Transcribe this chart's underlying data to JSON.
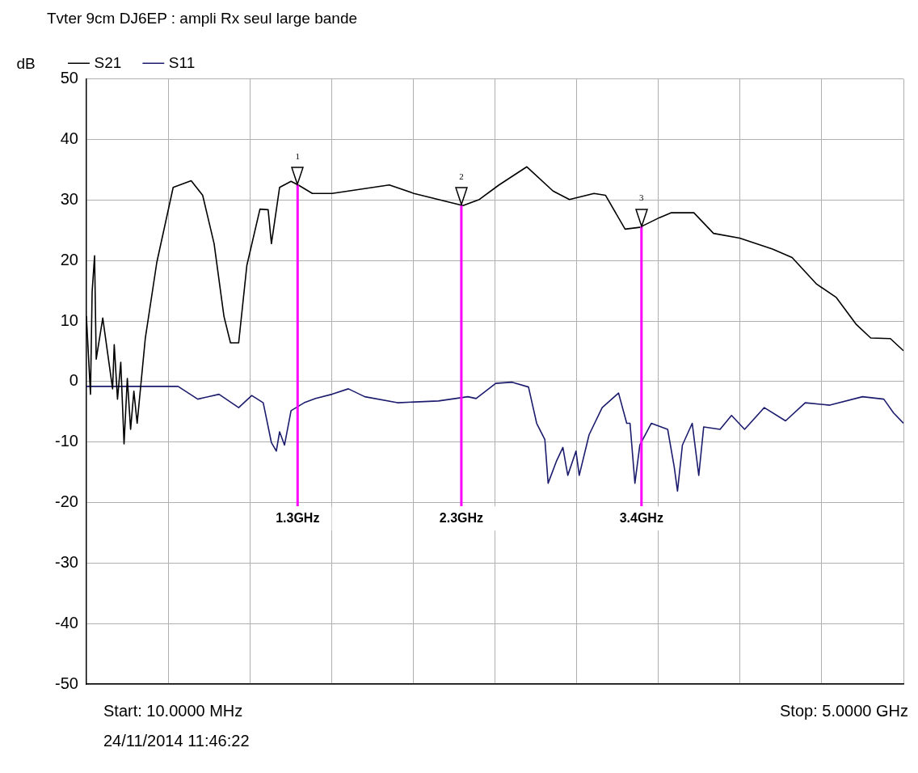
{
  "chart_data": {
    "type": "line",
    "title": "Tvter 9cm DJ6EP : ampli Rx seul large bande",
    "ylabel": "dB",
    "xlim": [
      0.01,
      5.0
    ],
    "xticks": [
      {
        "value": 0.01,
        "label": null
      },
      {
        "value": 0.509,
        "label": null
      },
      {
        "value": 1.008,
        "label": null
      },
      {
        "value": 1.507,
        "label": null
      },
      {
        "value": 2.006,
        "label": null
      },
      {
        "value": 2.505,
        "label": null
      },
      {
        "value": 3.004,
        "label": null
      },
      {
        "value": 3.503,
        "label": null
      },
      {
        "value": 4.002,
        "label": null
      },
      {
        "value": 4.501,
        "label": null
      },
      {
        "value": 5.0,
        "label": null
      }
    ],
    "ylim": [
      -50,
      50
    ],
    "yticks": [
      -50,
      -40,
      -30,
      -20,
      -10,
      0,
      10,
      20,
      30,
      40,
      50
    ],
    "grid": true,
    "legend": "top left",
    "marker": "none",
    "line_style": "solid",
    "tick_labels": "y",
    "series": [
      {
        "name": "S21",
        "color": "#000000",
        "x": [
          0.01,
          0.035,
          0.045,
          0.06,
          0.07,
          0.11,
          0.17,
          0.18,
          0.2,
          0.22,
          0.24,
          0.26,
          0.28,
          0.3,
          0.32,
          0.37,
          0.44,
          0.54,
          0.65,
          0.72,
          0.79,
          0.85,
          0.89,
          0.94,
          0.99,
          1.07,
          1.12,
          1.14,
          1.19,
          1.26,
          1.31,
          1.39,
          1.51,
          1.76,
          1.86,
          2.01,
          2.16,
          2.31,
          2.41,
          2.53,
          2.7,
          2.86,
          2.96,
          3.11,
          3.18,
          3.3,
          3.39,
          3.51,
          3.58,
          3.72,
          3.84,
          4.0,
          4.2,
          4.32,
          4.47,
          4.59,
          4.71,
          4.8,
          4.92,
          5.0
        ],
        "values": [
          10.8,
          -2.1,
          14.8,
          20.8,
          3.7,
          10.5,
          -1.2,
          6.1,
          -2.9,
          3.2,
          -10.3,
          0.5,
          -7.9,
          -1.6,
          -6.9,
          7.2,
          19.7,
          32.1,
          33.2,
          30.8,
          22.8,
          10.8,
          6.4,
          6.4,
          19.2,
          28.5,
          28.4,
          22.8,
          32.1,
          33.1,
          32.4,
          31.1,
          31.1,
          32.1,
          32.5,
          31.1,
          30.1,
          29.1,
          30.1,
          32.5,
          35.5,
          31.5,
          30.1,
          31.1,
          30.8,
          25.2,
          25.5,
          27.1,
          27.9,
          27.9,
          24.5,
          23.7,
          21.9,
          20.5,
          16.1,
          13.9,
          9.5,
          7.2,
          7.1,
          5.1
        ]
      },
      {
        "name": "S11",
        "color": "#1c1c6e",
        "x": [
          0.01,
          0.17,
          0.37,
          0.57,
          0.69,
          0.82,
          0.94,
          1.02,
          1.09,
          1.14,
          1.17,
          1.19,
          1.22,
          1.26,
          1.34,
          1.41,
          1.51,
          1.61,
          1.71,
          1.91,
          2.16,
          2.34,
          2.39,
          2.51,
          2.61,
          2.71,
          2.76,
          2.81,
          2.83,
          2.88,
          2.92,
          2.95,
          3.0,
          3.02,
          3.08,
          3.16,
          3.26,
          3.31,
          3.33,
          3.36,
          3.39,
          3.46,
          3.56,
          3.6,
          3.62,
          3.65,
          3.71,
          3.75,
          3.78,
          3.88,
          3.95,
          4.03,
          4.15,
          4.28,
          4.4,
          4.55,
          4.75,
          4.88,
          4.94,
          5.0
        ],
        "values": [
          -0.8,
          -0.8,
          -0.8,
          -0.8,
          -2.9,
          -2.1,
          -4.3,
          -2.3,
          -3.5,
          -10.1,
          -11.5,
          -8.3,
          -10.5,
          -4.8,
          -3.5,
          -2.8,
          -2.1,
          -1.2,
          -2.5,
          -3.5,
          -3.2,
          -2.5,
          -2.8,
          -0.3,
          -0.1,
          -0.9,
          -6.9,
          -9.6,
          -16.8,
          -13.2,
          -10.9,
          -15.5,
          -11.5,
          -15.5,
          -8.8,
          -4.3,
          -1.9,
          -6.9,
          -6.9,
          -16.8,
          -10.5,
          -6.9,
          -7.9,
          -14.1,
          -18.1,
          -10.5,
          -6.9,
          -15.5,
          -7.5,
          -7.9,
          -5.6,
          -7.9,
          -4.3,
          -6.5,
          -3.5,
          -3.9,
          -2.5,
          -2.9,
          -5.2,
          -6.9
        ]
      }
    ],
    "ref_lines": [
      {
        "axis": "x",
        "value": 1.3,
        "label": "1.3GHz",
        "color": "#ff00ff"
      },
      {
        "axis": "x",
        "value": 2.3,
        "label": "2.3GHz",
        "color": "#ff00ff"
      },
      {
        "axis": "x",
        "value": 3.4,
        "label": "3.4GHz",
        "color": "#ff00ff"
      }
    ],
    "annotations": [
      {
        "text": "1",
        "x": 1.3,
        "y": 32.4
      },
      {
        "text": "2",
        "x": 2.3,
        "y": 29.1
      },
      {
        "text": "3",
        "x": 3.4,
        "y": 25.5
      },
      "Start: 10.0000 MHz",
      "Stop: 5.0000 GHz",
      "24/11/2014 11:46:22"
    ]
  }
}
